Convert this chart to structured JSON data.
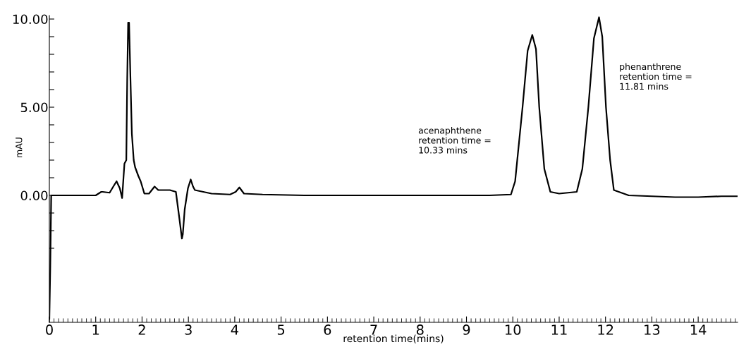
{
  "chart_data": {
    "type": "line",
    "xlabel": "retention time(mins)",
    "ylabel": "mAU",
    "xlim": [
      0,
      14.85
    ],
    "ylim": [
      -7.2,
      10.2
    ],
    "xticks": [
      0,
      1,
      2,
      3,
      4,
      5,
      6,
      7,
      8,
      9,
      10,
      11,
      12,
      13,
      14
    ],
    "yticks": [
      {
        "value": -3,
        "label": null
      },
      {
        "value": -2,
        "label": null
      },
      {
        "value": -1,
        "label": null
      },
      {
        "value": 0,
        "label": "0.00"
      },
      {
        "value": 1,
        "label": null
      },
      {
        "value": 2,
        "label": null
      },
      {
        "value": 3,
        "label": null
      },
      {
        "value": 4,
        "label": null
      },
      {
        "value": 5,
        "label": "5.00"
      },
      {
        "value": 6,
        "label": null
      },
      {
        "value": 7,
        "label": null
      },
      {
        "value": 8,
        "label": null
      },
      {
        "value": 9,
        "label": null
      },
      {
        "value": 10,
        "label": "10.00"
      }
    ],
    "grid": false,
    "marker": "none",
    "line_style": "solid",
    "annotations": [
      "acenaphthene\nretention time =\n10.33 mins",
      "phenanthrene\nretention time =\n11.81 mins"
    ],
    "series": [
      {
        "color": "#000000",
        "x": [
          0,
          0.02,
          0.04,
          0.5,
          1.0,
          1.12,
          1.15,
          1.3,
          1.38,
          1.45,
          1.52,
          1.57,
          1.62,
          1.66,
          1.68,
          1.7,
          1.72,
          1.75,
          1.78,
          1.82,
          1.85,
          1.92,
          1.97,
          2.05,
          2.15,
          2.27,
          2.35,
          2.6,
          2.73,
          2.8,
          2.86,
          2.88,
          2.92,
          2.99,
          3.05,
          3.1,
          3.14,
          3.5,
          3.9,
          4.02,
          4.1,
          4.2,
          4.6,
          5.5,
          6.5,
          7.5,
          8.5,
          9.5,
          9.96,
          10.05,
          10.21,
          10.32,
          10.42,
          10.5,
          10.57,
          10.68,
          10.81,
          11.0,
          11.38,
          11.5,
          11.63,
          11.75,
          11.86,
          11.93,
          12.01,
          12.1,
          12.18,
          12.5,
          13.0,
          13.5,
          14.0,
          14.5,
          14.85
        ],
        "values": [
          -7.0,
          -4.0,
          0.0,
          0.0,
          0.0,
          0.2,
          0.2,
          0.15,
          0.5,
          0.8,
          0.4,
          -0.15,
          1.8,
          2.0,
          6.6,
          9.8,
          9.8,
          6.6,
          3.5,
          2.0,
          1.6,
          1.1,
          0.8,
          0.1,
          0.1,
          0.5,
          0.3,
          0.3,
          0.2,
          -1.2,
          -2.45,
          -2.2,
          -0.8,
          0.4,
          0.9,
          0.5,
          0.3,
          0.1,
          0.05,
          0.2,
          0.45,
          0.1,
          0.05,
          0.0,
          0.0,
          0.0,
          0.0,
          0.0,
          0.05,
          0.8,
          5.0,
          8.2,
          9.1,
          8.3,
          5.0,
          1.5,
          0.2,
          0.1,
          0.2,
          1.5,
          5.0,
          8.9,
          10.1,
          9.0,
          5.0,
          2.0,
          0.3,
          0.0,
          -0.05,
          -0.1,
          -0.1,
          -0.05,
          -0.05
        ]
      }
    ]
  }
}
